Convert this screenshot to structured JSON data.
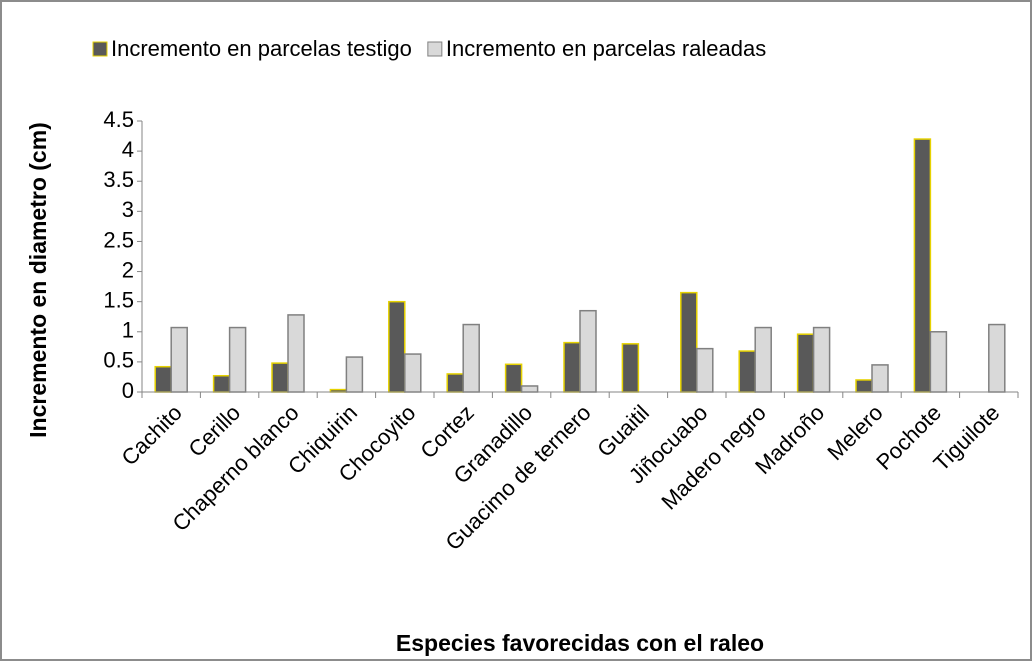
{
  "chart_data": {
    "type": "bar",
    "x_label": "Especies favorecidas con el raleo",
    "y_label": "Incremento en diametro (cm)",
    "categories": [
      "Cachito",
      "Cerillo",
      "Chaperno blanco",
      "Chiquirin",
      "Chocoyito",
      "Cortez",
      "Granadillo",
      "Guacimo de ternero",
      "Guaitil",
      "Jiñocuabo",
      "Madero negro",
      "Madroño",
      "Melero",
      "Pochote",
      "Tiguilote"
    ],
    "series": [
      {
        "name": "Incremento en parcelas testigo",
        "color": "#595959",
        "edge": "#e6d200",
        "values": [
          0.42,
          0.27,
          0.48,
          0.04,
          1.5,
          0.3,
          0.46,
          0.82,
          0.8,
          1.65,
          0.68,
          0.96,
          0.2,
          4.2,
          0
        ]
      },
      {
        "name": "Incremento en parcelas raleadas",
        "color": "#d9d9d9",
        "edge": "#808080",
        "values": [
          1.07,
          1.07,
          1.28,
          0.58,
          0.63,
          1.12,
          0.1,
          1.35,
          0,
          0.72,
          1.07,
          1.07,
          0.45,
          1.0,
          1.12
        ]
      }
    ],
    "ylim": [
      0,
      4.5
    ],
    "yticks": [
      0,
      0.5,
      1,
      1.5,
      2,
      2.5,
      3,
      3.5,
      4,
      4.5
    ],
    "grid": false,
    "legend": "top"
  }
}
